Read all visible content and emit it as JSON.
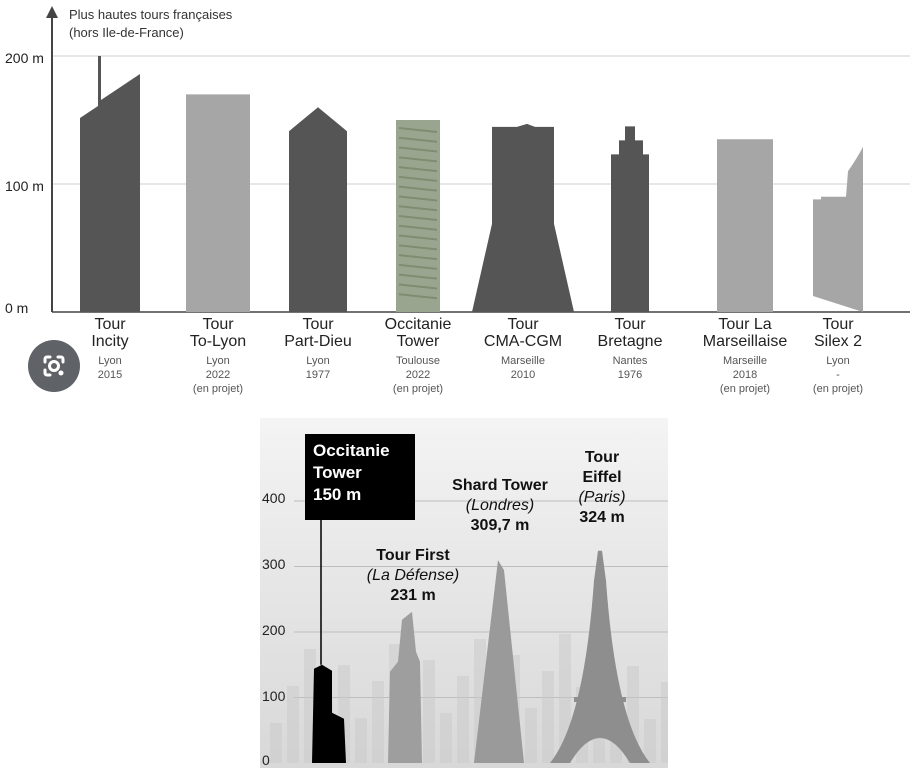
{
  "chart_data": [
    {
      "type": "bar",
      "title": "Plus hautes tours françaises",
      "subtitle": "(hors Ile-de-France)",
      "y_ticks": [
        "200 m",
        "100 m",
        "0 m"
      ],
      "ylim": [
        0,
        240
      ],
      "grid": true,
      "bar_colors": {
        "dark": "#555555",
        "light": "#a6a6a6"
      },
      "bars": [
        {
          "name": "Tour\nIncity",
          "city": "Lyon",
          "year": "2015",
          "status": "",
          "height_m": 200,
          "roof_m": 175,
          "shade": "dark"
        },
        {
          "name": "Tour\nTo-Lyon",
          "city": "Lyon",
          "year": "2022",
          "status": "(en projet)",
          "height_m": 170,
          "shade": "light"
        },
        {
          "name": "Tour\nPart-Dieu",
          "city": "Lyon",
          "year": "1977",
          "status": "",
          "height_m": 160,
          "shade": "dark"
        },
        {
          "name": "Occitanie\nTower",
          "city": "Toulouse",
          "year": "2022",
          "status": "(en projet)",
          "height_m": 150,
          "shade": "photo"
        },
        {
          "name": "Tour\nCMA-CGM",
          "city": "Marseille",
          "year": "2010",
          "status": "",
          "height_m": 147,
          "shade": "dark"
        },
        {
          "name": "Tour\nBretagne",
          "city": "Nantes",
          "year": "1976",
          "status": "",
          "height_m": 145,
          "shade": "dark"
        },
        {
          "name": "Tour La\nMarseillaise",
          "city": "Marseille",
          "year": "2018",
          "status": "(en projet)",
          "height_m": 135,
          "shade": "light"
        },
        {
          "name": "Tour\nSilex 2",
          "city": "Lyon",
          "year": "-",
          "status": "(en projet)",
          "height_m": 129,
          "shade": "light"
        }
      ]
    },
    {
      "type": "bar",
      "y_ticks": [
        "400",
        "300",
        "200",
        "100",
        "0"
      ],
      "ylim": [
        0,
        400
      ],
      "bars": [
        {
          "name": "Occitanie\nTower",
          "place": "",
          "height_label": "150 m",
          "height_m": 150
        },
        {
          "name": "Tour First",
          "place": "(La Défense)",
          "height_label": "231 m",
          "height_m": 231
        },
        {
          "name": "Shard Tower",
          "place": "(Londres)",
          "height_label": "309,7 m",
          "height_m": 309.7
        },
        {
          "name": "Tour\nEiffel",
          "place": "(Paris)",
          "height_label": "324 m",
          "height_m": 324
        }
      ]
    }
  ],
  "icons": {
    "lens": "google-lens-icon"
  }
}
